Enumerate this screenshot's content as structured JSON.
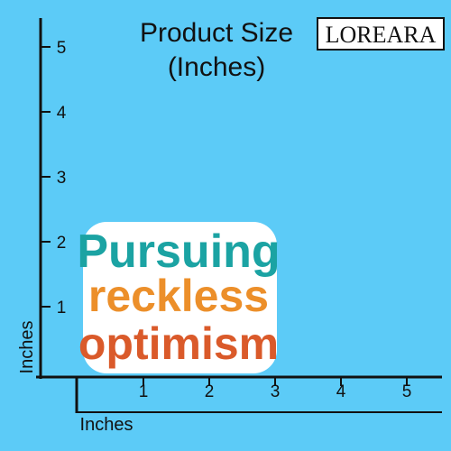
{
  "header": {
    "title_lines": [
      "Product Size",
      "(Inches)"
    ],
    "brand": "LOREARA"
  },
  "sticker": {
    "lines": [
      "Pursuing",
      "reckless",
      "optimism"
    ]
  },
  "ruler": {
    "vertical_label": "Inches",
    "horizontal_label": "Inches",
    "vertical_ticks": [
      5,
      4,
      3,
      2,
      1
    ],
    "horizontal_ticks": [
      1,
      2,
      3,
      4,
      5
    ]
  }
}
